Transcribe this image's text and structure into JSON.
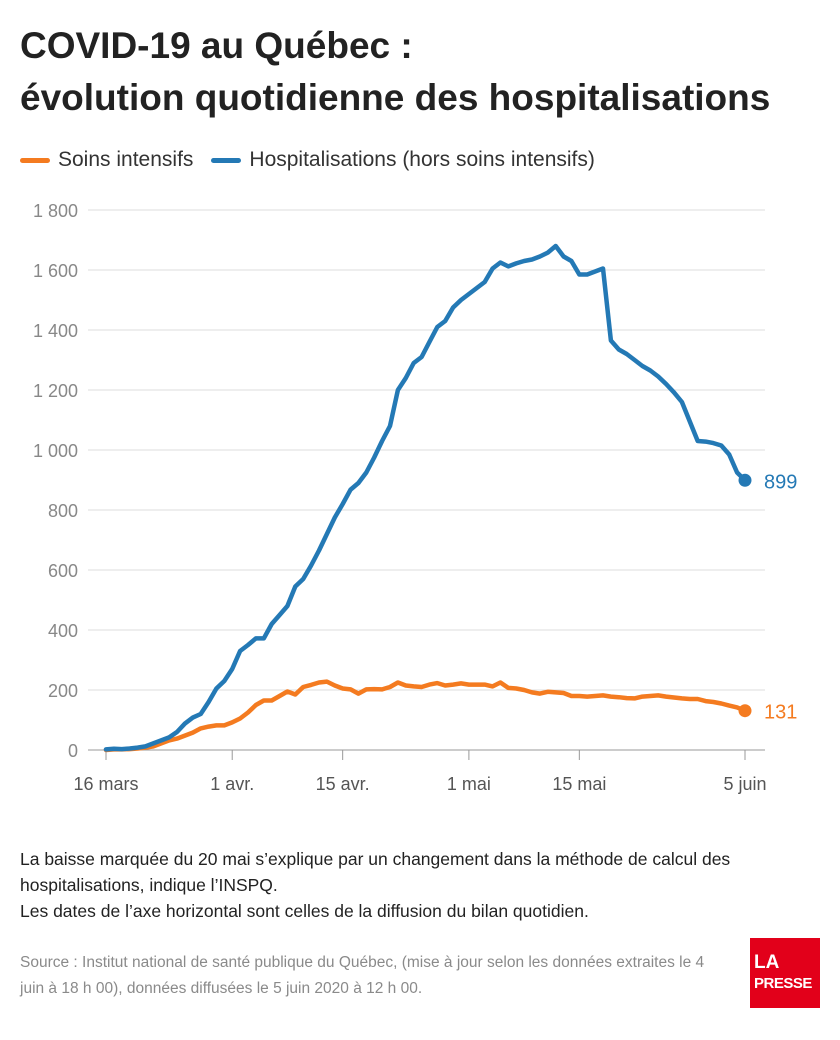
{
  "title_line1": "COVID-19 au Québec :",
  "title_line2": "évolution quotidienne des hospitalisations",
  "note_line1": "La baisse marquée du 20 mai s’explique par un changement dans la méthode de calcul des hospitalisations, indique l’INSPQ.",
  "note_line2": "Les dates de l’axe horizontal sont celles de la diffusion du bilan quotidien.",
  "source": "Source : Institut national de santé publique du Québec, (mise à jour selon les données extraites le 4 juin à 18 h 00), données diffusées le 5 juin 2020 à 12 h 00.",
  "logo": {
    "line1": "LA",
    "line2": "PRESSE"
  },
  "colors": {
    "icu": "#f47b20",
    "hosp": "#2479b5",
    "grid": "#dddddd",
    "axis": "#999999"
  },
  "chart_data": {
    "type": "line",
    "title": "COVID-19 au Québec : évolution quotidienne des hospitalisations",
    "xlabel": "",
    "ylabel": "",
    "ylim": [
      0,
      1800
    ],
    "yticks": [
      0,
      200,
      400,
      600,
      800,
      1000,
      1200,
      1400,
      1600,
      1800
    ],
    "ytick_labels": [
      "0",
      "200",
      "400",
      "600",
      "800",
      "1 000",
      "1 200",
      "1 400",
      "1 600",
      "1 800"
    ],
    "xlim": [
      "2020-03-16",
      "2020-06-05"
    ],
    "xticks": [
      {
        "date": "2020-03-16",
        "label": "16 mars"
      },
      {
        "date": "2020-04-01",
        "label": "1 avr."
      },
      {
        "date": "2020-04-15",
        "label": "15 avr."
      },
      {
        "date": "2020-05-01",
        "label": "1 mai"
      },
      {
        "date": "2020-05-15",
        "label": "15 mai"
      },
      {
        "date": "2020-06-05",
        "label": "5 juin"
      }
    ],
    "grid": true,
    "legend_position": "top-left",
    "x": [
      "2020-03-16",
      "2020-03-17",
      "2020-03-18",
      "2020-03-19",
      "2020-03-20",
      "2020-03-21",
      "2020-03-22",
      "2020-03-23",
      "2020-03-24",
      "2020-03-25",
      "2020-03-26",
      "2020-03-27",
      "2020-03-28",
      "2020-03-29",
      "2020-03-30",
      "2020-03-31",
      "2020-04-01",
      "2020-04-02",
      "2020-04-03",
      "2020-04-04",
      "2020-04-05",
      "2020-04-06",
      "2020-04-07",
      "2020-04-08",
      "2020-04-09",
      "2020-04-10",
      "2020-04-11",
      "2020-04-12",
      "2020-04-13",
      "2020-04-14",
      "2020-04-15",
      "2020-04-16",
      "2020-04-17",
      "2020-04-18",
      "2020-04-19",
      "2020-04-20",
      "2020-04-21",
      "2020-04-22",
      "2020-04-23",
      "2020-04-24",
      "2020-04-25",
      "2020-04-26",
      "2020-04-27",
      "2020-04-28",
      "2020-04-29",
      "2020-04-30",
      "2020-05-01",
      "2020-05-02",
      "2020-05-03",
      "2020-05-04",
      "2020-05-05",
      "2020-05-06",
      "2020-05-07",
      "2020-05-08",
      "2020-05-09",
      "2020-05-10",
      "2020-05-11",
      "2020-05-12",
      "2020-05-13",
      "2020-05-14",
      "2020-05-15",
      "2020-05-16",
      "2020-05-17",
      "2020-05-18",
      "2020-05-19",
      "2020-05-20",
      "2020-05-21",
      "2020-05-22",
      "2020-05-23",
      "2020-05-24",
      "2020-05-25",
      "2020-05-26",
      "2020-05-27",
      "2020-05-28",
      "2020-05-29",
      "2020-05-30",
      "2020-05-31",
      "2020-06-01",
      "2020-06-02",
      "2020-06-03",
      "2020-06-04",
      "2020-06-05"
    ],
    "series": [
      {
        "name": "Hospitalisations (hors soins intensifs)",
        "color": "#2479b5",
        "end_label": "899",
        "values": [
          2,
          4,
          3,
          5,
          8,
          12,
          22,
          32,
          42,
          60,
          88,
          108,
          120,
          160,
          205,
          230,
          270,
          330,
          350,
          372,
          372,
          420,
          450,
          480,
          545,
          570,
          615,
          665,
          720,
          775,
          820,
          868,
          890,
          925,
          975,
          1030,
          1080,
          1200,
          1240,
          1290,
          1310,
          1360,
          1410,
          1430,
          1475,
          1500,
          1520,
          1540,
          1560,
          1605,
          1625,
          1612,
          1622,
          1630,
          1635,
          1645,
          1658,
          1680,
          1645,
          1630,
          1585,
          1585,
          1595,
          1605,
          1365,
          1335,
          1320,
          1300,
          1280,
          1265,
          1245,
          1220,
          1192,
          1160,
          1095,
          1030,
          1028,
          1023,
          1015,
          985,
          925,
          899
        ]
      },
      {
        "name": "Soins intensifs",
        "color": "#f47b20",
        "end_label": "131",
        "values": [
          0,
          2,
          2,
          3,
          5,
          8,
          12,
          22,
          32,
          38,
          48,
          58,
          72,
          78,
          82,
          82,
          92,
          105,
          125,
          150,
          165,
          165,
          180,
          195,
          185,
          210,
          217,
          225,
          228,
          215,
          205,
          202,
          188,
          202,
          203,
          202,
          210,
          225,
          215,
          212,
          210,
          218,
          223,
          215,
          218,
          222,
          218,
          218,
          218,
          212,
          225,
          207,
          205,
          200,
          192,
          188,
          194,
          192,
          190,
          180,
          180,
          178,
          180,
          182,
          178,
          176,
          173,
          172,
          178,
          180,
          182,
          178,
          175,
          172,
          170,
          170,
          163,
          160,
          155,
          148,
          142,
          131
        ]
      }
    ]
  }
}
